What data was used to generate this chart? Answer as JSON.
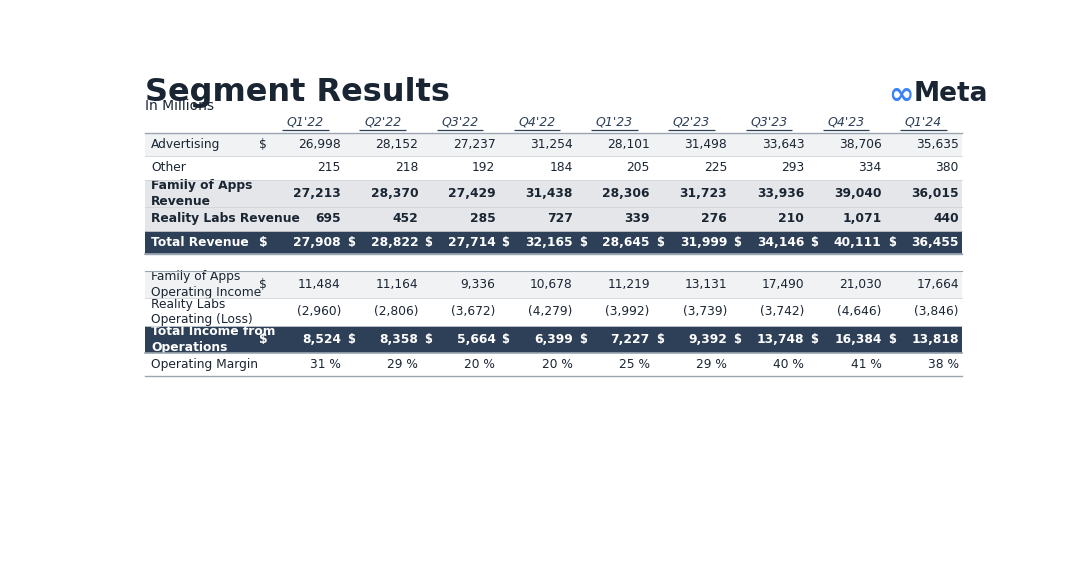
{
  "title": "Segment Results",
  "subtitle": "In Millions",
  "col_headers": [
    "Q1'22",
    "Q2'22",
    "Q3'22",
    "Q4'22",
    "Q1'23",
    "Q2'23",
    "Q3'23",
    "Q4'23",
    "Q1'24"
  ],
  "rows_section1": [
    {
      "label": "Advertising",
      "dollar": true,
      "bold": false,
      "dark": false,
      "values": [
        "26,998",
        "28,152",
        "27,237",
        "31,254",
        "28,101",
        "31,498",
        "33,643",
        "38,706",
        "35,635"
      ]
    },
    {
      "label": "Other",
      "dollar": false,
      "bold": false,
      "dark": false,
      "values": [
        "215",
        "218",
        "192",
        "184",
        "205",
        "225",
        "293",
        "334",
        "380"
      ]
    },
    {
      "label": "Family of Apps\nRevenue",
      "dollar": false,
      "bold": true,
      "dark": false,
      "values": [
        "27,213",
        "28,370",
        "27,429",
        "31,438",
        "28,306",
        "31,723",
        "33,936",
        "39,040",
        "36,015"
      ]
    },
    {
      "label": "Reality Labs Revenue",
      "dollar": false,
      "bold": true,
      "dark": false,
      "values": [
        "695",
        "452",
        "285",
        "727",
        "339",
        "276",
        "210",
        "1,071",
        "440"
      ]
    },
    {
      "label": "Total Revenue",
      "dollar": true,
      "bold": true,
      "dark": true,
      "values": [
        "27,908",
        "28,822",
        "27,714",
        "32,165",
        "28,645",
        "31,999",
        "34,146",
        "40,111",
        "36,455"
      ]
    }
  ],
  "rows_section2": [
    {
      "label": "Family of Apps\nOperating Income",
      "dollar": true,
      "bold": false,
      "dark": false,
      "values": [
        "11,484",
        "11,164",
        "9,336",
        "10,678",
        "11,219",
        "13,131",
        "17,490",
        "21,030",
        "17,664"
      ]
    },
    {
      "label": "Reality Labs\nOperating (Loss)",
      "dollar": false,
      "bold": false,
      "dark": false,
      "values": [
        "(2,960)",
        "(2,806)",
        "(3,672)",
        "(4,279)",
        "(3,992)",
        "(3,739)",
        "(3,742)",
        "(4,646)",
        "(3,846)"
      ]
    },
    {
      "label": "Total Income from\nOperations",
      "dollar": true,
      "bold": true,
      "dark": true,
      "values": [
        "8,524",
        "8,358",
        "5,664",
        "6,399",
        "7,227",
        "9,392",
        "13,748",
        "16,384",
        "13,818"
      ]
    },
    {
      "label": "Operating Margin",
      "dollar": false,
      "bold": false,
      "dark": false,
      "values": [
        "31 %",
        "29 %",
        "20 %",
        "20 %",
        "25 %",
        "29 %",
        "40 %",
        "41 %",
        "38 %"
      ]
    }
  ],
  "bg_color": "#ffffff",
  "dark_row_bg": "#2e4057",
  "dark_row_fg": "#ffffff",
  "light_row_bg": "#f0f2f4",
  "white_row_bg": "#ffffff",
  "bold_row_bg": "#e4e6e9",
  "text_color": "#1a2533",
  "header_color": "#2e4057",
  "meta_blue": "#3b82f6",
  "title_color": "#1a2533",
  "sep_line_color": "#9aa5b1",
  "row_line_color": "#d0d4d8"
}
